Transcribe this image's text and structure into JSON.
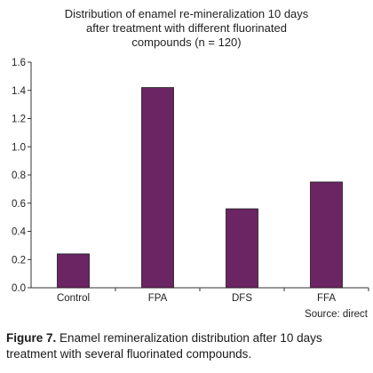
{
  "chart_data": {
    "type": "bar",
    "title_lines": [
      "Distribution of enamel re-mineralization 10 days",
      "after treatment with different fluorinated",
      "compounds (n = 120)"
    ],
    "categories": [
      "Control",
      "FPA",
      "DFS",
      "FFA"
    ],
    "values": [
      0.24,
      1.42,
      0.56,
      0.75
    ],
    "ylim": [
      0,
      1.6
    ],
    "yticks": [
      "0.0",
      "0.2",
      "0.4",
      "0.6",
      "0.8",
      "1.0",
      "1.2",
      "1.4",
      "1.6"
    ],
    "xlabel": "",
    "ylabel": "",
    "grid": false,
    "bar_color": "#6b2563"
  },
  "source_note": "Source: direct",
  "caption": {
    "label": "Figure 7.",
    "text": " Enamel remineralization distribution after 10 days treatment with several fluorinated compounds."
  }
}
